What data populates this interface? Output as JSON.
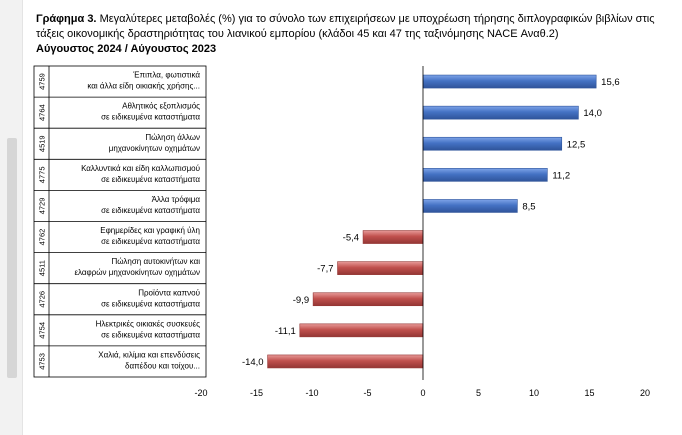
{
  "title": {
    "label": "Γράφημα 3.",
    "text_line1": "Μεγαλύτερες μεταβολές (%) για το σύνολο των επιχειρήσεων με υποχρέωση τήρησης διπλογραφικών βιβλίων στις",
    "text_line2": "τάξεις οικονομικής δραστηριότητας του λιανικού εμπορίου (κλάδοι 45 και 47 της ταξινόμησης NACE Αναθ.2)",
    "subtitle": "Αύγουστος 2024 / Αύγουστος 2023"
  },
  "colors": {
    "positive_bar": "#4472c4",
    "negative_bar": "#c0504d",
    "axis": "#000000"
  },
  "chart_data": {
    "type": "bar",
    "orientation": "horizontal",
    "codes": [
      "4759",
      "4764",
      "4519",
      "4775",
      "4729",
      "4762",
      "4511",
      "4726",
      "4754",
      "4753"
    ],
    "categories": [
      [
        "Έπιπλα, φωτιστικά",
        "και άλλα είδη οικιακής χρήσης..."
      ],
      [
        "Αθλητικός εξοπλισμός",
        "σε ειδικευμένα καταστήματα"
      ],
      [
        "Πώληση άλλων",
        "μηχανοκίνητων οχημάτων"
      ],
      [
        "Καλλυντικά και είδη καλλωπισμού",
        "σε ειδικευμένα καταστήματα"
      ],
      [
        "Άλλα τρόφιμα",
        "σε ειδικευμένα καταστήματα"
      ],
      [
        "Εφημερίδες και γραφική ύλη",
        "σε ειδικευμένα καταστήματα"
      ],
      [
        "Πώληση αυτοκινήτων και",
        "ελαφρών μηχανοκίνητων οχημάτων"
      ],
      [
        "Προϊόντα καπνού",
        "σε ειδικευμένα καταστήματα"
      ],
      [
        "Ηλεκτρικές οικιακές συσκευές",
        "σε ειδικευμένα καταστήματα"
      ],
      [
        "Χαλιά, κιλίμια και επενδύσεις",
        "δαπέδου και τοίχου..."
      ]
    ],
    "values": [
      15.6,
      14.0,
      12.5,
      11.2,
      8.5,
      -5.4,
      -7.7,
      -9.9,
      -11.1,
      -14.0
    ],
    "value_labels": [
      "15,6",
      "14,0",
      "12,5",
      "11,2",
      "8,5",
      "-5,4",
      "-7,7",
      "-9,9",
      "-11,1",
      "-14,0"
    ],
    "xlim": [
      -20,
      20
    ],
    "xticks": [
      -20,
      -15,
      -10,
      -5,
      0,
      5,
      10,
      15,
      20
    ],
    "xtick_labels": [
      "-20",
      "-15",
      "-10",
      "-5",
      "0",
      "5",
      "10",
      "15",
      "20"
    ],
    "grid": false,
    "legend": "none"
  }
}
